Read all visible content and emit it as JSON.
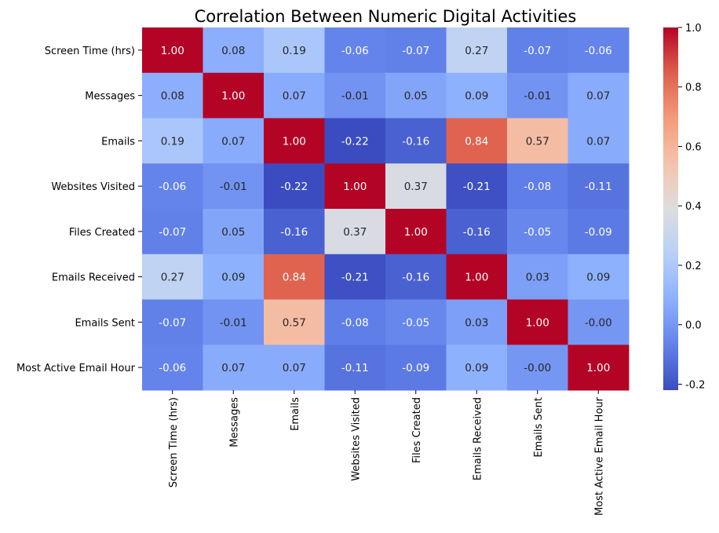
{
  "chart_data": {
    "type": "heatmap",
    "title": "Correlation Between Numeric Digital Activities",
    "rows": [
      "Screen Time (hrs)",
      "Messages",
      "Emails",
      "Websites Visited",
      "Files Created",
      "Emails Received",
      "Emails Sent",
      "Most Active Email Hour"
    ],
    "columns": [
      "Screen Time (hrs)",
      "Messages",
      "Emails",
      "Websites Visited",
      "Files Created",
      "Emails Received",
      "Emails Sent",
      "Most Active Email Hour"
    ],
    "values": [
      [
        1.0,
        0.08,
        0.19,
        -0.06,
        -0.07,
        0.27,
        -0.07,
        -0.06
      ],
      [
        0.08,
        1.0,
        0.07,
        -0.01,
        0.05,
        0.09,
        -0.01,
        0.07
      ],
      [
        0.19,
        0.07,
        1.0,
        -0.22,
        -0.16,
        0.84,
        0.57,
        0.07
      ],
      [
        -0.06,
        -0.01,
        -0.22,
        1.0,
        0.37,
        -0.21,
        -0.08,
        -0.11
      ],
      [
        -0.07,
        0.05,
        -0.16,
        0.37,
        1.0,
        -0.16,
        -0.05,
        -0.09
      ],
      [
        0.27,
        0.09,
        0.84,
        -0.21,
        -0.16,
        1.0,
        0.03,
        0.09
      ],
      [
        -0.07,
        -0.01,
        0.57,
        -0.08,
        -0.05,
        0.03,
        1.0,
        -0.0
      ],
      [
        -0.06,
        0.07,
        0.07,
        -0.11,
        -0.09,
        0.09,
        -0.0,
        1.0
      ]
    ],
    "cell_labels": [
      [
        "1.00",
        "0.08",
        "0.19",
        "-0.06",
        "-0.07",
        "0.27",
        "-0.07",
        "-0.06"
      ],
      [
        "0.08",
        "1.00",
        "0.07",
        "-0.01",
        "0.05",
        "0.09",
        "-0.01",
        "0.07"
      ],
      [
        "0.19",
        "0.07",
        "1.00",
        "-0.22",
        "-0.16",
        "0.84",
        "0.57",
        "0.07"
      ],
      [
        "-0.06",
        "-0.01",
        "-0.22",
        "1.00",
        "0.37",
        "-0.21",
        "-0.08",
        "-0.11"
      ],
      [
        "-0.07",
        "0.05",
        "-0.16",
        "0.37",
        "1.00",
        "-0.16",
        "-0.05",
        "-0.09"
      ],
      [
        "0.27",
        "0.09",
        "0.84",
        "-0.21",
        "-0.16",
        "1.00",
        "0.03",
        "0.09"
      ],
      [
        "-0.07",
        "-0.01",
        "0.57",
        "-0.08",
        "-0.05",
        "0.03",
        "1.00",
        "-0.00"
      ],
      [
        "-0.06",
        "0.07",
        "0.07",
        "-0.11",
        "-0.09",
        "0.09",
        "-0.00",
        "1.00"
      ]
    ],
    "colormap": "coolwarm",
    "vmin": -0.22,
    "vmax": 1.0,
    "colorbar_ticks": [
      "-0.2",
      "0.0",
      "0.2",
      "0.4",
      "0.6",
      "0.8",
      "1.0"
    ],
    "colorbar_tick_values": [
      -0.2,
      0.0,
      0.2,
      0.4,
      0.6,
      0.8,
      1.0
    ],
    "legend_placement": "right",
    "grid": false
  }
}
